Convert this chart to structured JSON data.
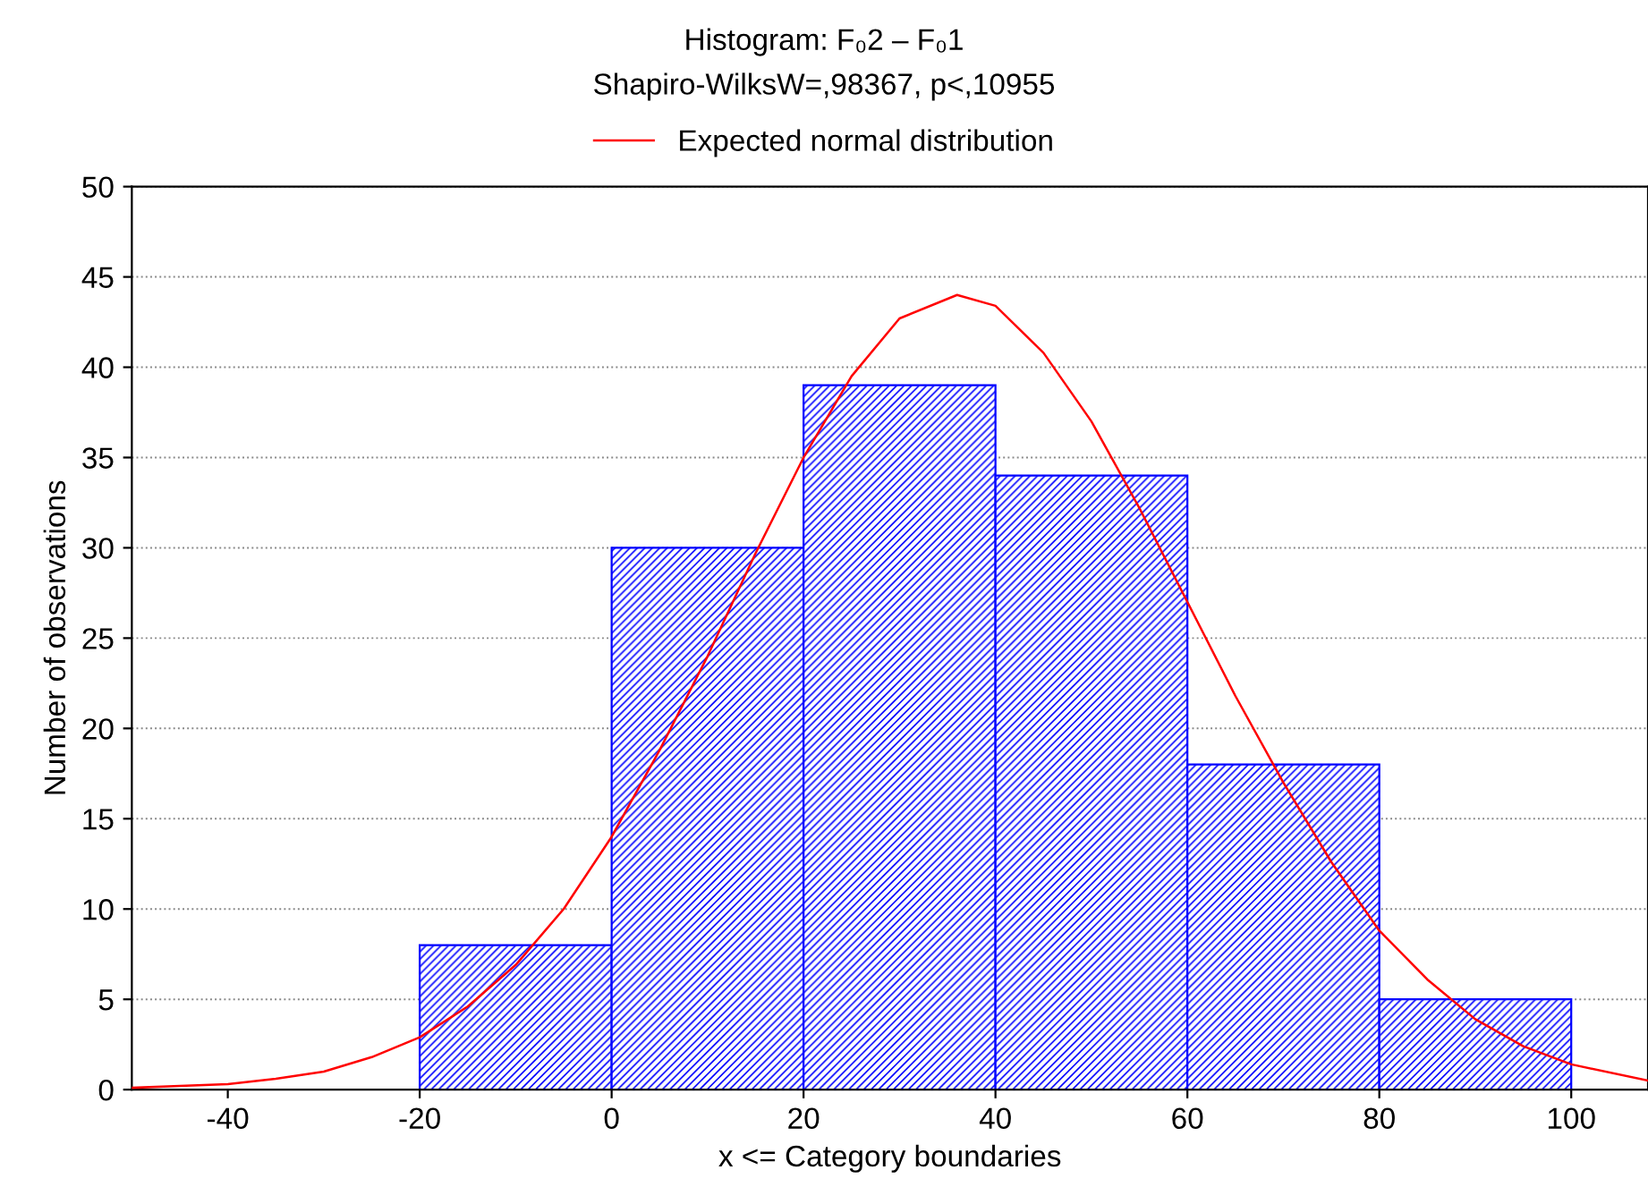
{
  "chart_data": {
    "type": "histogram",
    "title": "Histogram: F₀2 – F₀1",
    "subtitle": "Shapiro-WilksW=,98367, p<,10955",
    "xlabel": "x <= Category boundaries",
    "ylabel": "Number of observations",
    "bins": [
      -20,
      0,
      20,
      40,
      60,
      80,
      100
    ],
    "series": [
      {
        "color": "#0000ff",
        "values": [
          8,
          30,
          39,
          34,
          18,
          5
        ]
      },
      {
        "type": "line",
        "name": "Expected normal distribution",
        "color": "#ff0000",
        "x": [
          -50,
          -45,
          -40,
          -35,
          -30,
          -25,
          -20,
          -15,
          -10,
          -5,
          0,
          5,
          10,
          15,
          20,
          25,
          30,
          36,
          40,
          45,
          50,
          55,
          60,
          65,
          70,
          75,
          80,
          85,
          90,
          95,
          100,
          108
        ],
        "values": [
          0.1,
          0.2,
          0.3,
          0.6,
          1.0,
          1.8,
          2.9,
          4.6,
          6.9,
          10,
          14,
          18.8,
          24,
          29.7,
          35,
          39.5,
          42.7,
          44,
          43.4,
          40.8,
          37,
          32.2,
          27,
          21.8,
          17,
          12.6,
          8.8,
          6.1,
          3.9,
          2.4,
          1.4,
          0.5
        ]
      }
    ],
    "xlim": [
      -50,
      108
    ],
    "xticks": [
      -40,
      -20,
      0,
      20,
      40,
      60,
      80,
      100
    ],
    "ylim": [
      0,
      50
    ],
    "yticks": [
      0,
      5,
      10,
      15,
      20,
      25,
      30,
      35,
      40,
      45,
      50
    ],
    "grid": "y",
    "legend": "top",
    "marker": "none",
    "line_style": "solid"
  }
}
